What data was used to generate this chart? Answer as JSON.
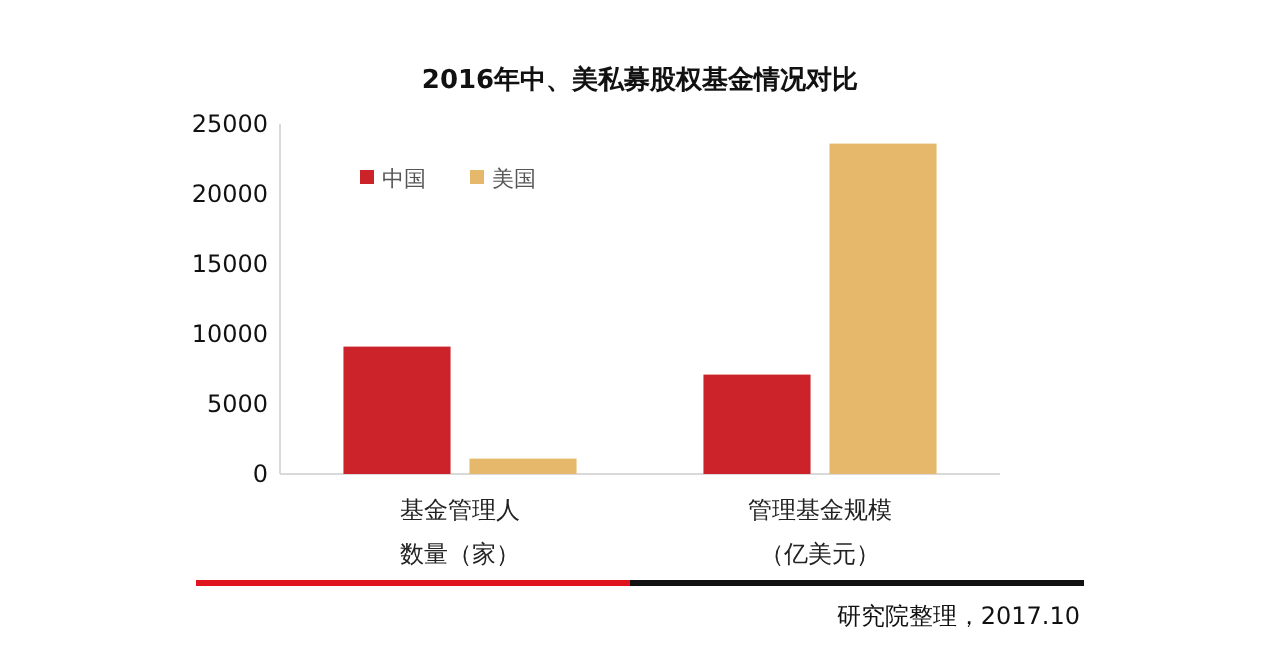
{
  "chart_data": {
    "type": "bar",
    "title": "2016年中、美私募股权基金情况对比",
    "categories": [
      "基金管理人数量（家）",
      "管理基金规模（亿美元）"
    ],
    "series": [
      {
        "name": "中国",
        "color": "#cc2229",
        "values": [
          9100,
          7100
        ]
      },
      {
        "name": "美国",
        "color": "#e6b86c",
        "values": [
          1100,
          23600
        ]
      }
    ],
    "ylim": [
      0,
      25000
    ],
    "yticks": [
      0,
      5000,
      10000,
      15000,
      20000,
      25000
    ],
    "grid": false,
    "legend": "top left",
    "annotations": [
      "研究院整理，2017.10"
    ]
  }
}
